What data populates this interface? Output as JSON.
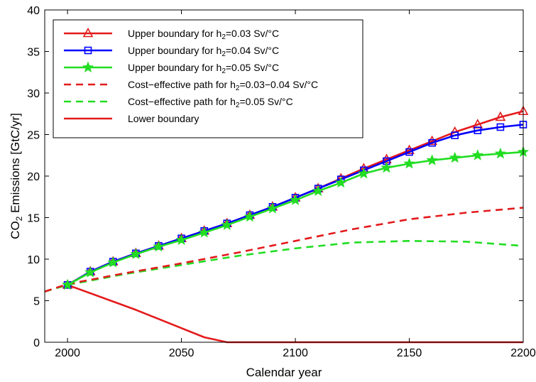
{
  "chart_data": {
    "type": "line",
    "xlabel": "Calendar year",
    "ylabel_main": "CO",
    "ylabel_sub": "2",
    "ylabel_rest": " Emissions [GtC/yr]",
    "xlim": [
      1990,
      2200
    ],
    "ylim": [
      0,
      40
    ],
    "xticks": [
      2000,
      2050,
      2100,
      2150,
      2200
    ],
    "yticks": [
      0,
      5,
      10,
      15,
      20,
      25,
      30,
      35,
      40
    ],
    "grid": false,
    "legend_position": "top-left",
    "series": [
      {
        "name_pre": "Upper boundary for h",
        "name_sub": "2",
        "name_post": "=0.03 Sv/°C",
        "color": "#e31a1c",
        "style": "solid",
        "marker": "triangle",
        "x": [
          2000,
          2010,
          2020,
          2030,
          2040,
          2050,
          2060,
          2070,
          2080,
          2090,
          2100,
          2110,
          2120,
          2130,
          2140,
          2150,
          2160,
          2170,
          2180,
          2190,
          2200
        ],
        "y": [
          6.9,
          8.5,
          9.7,
          10.7,
          11.6,
          12.5,
          13.4,
          14.3,
          15.3,
          16.3,
          17.4,
          18.5,
          19.7,
          20.9,
          22.0,
          23.1,
          24.2,
          25.3,
          26.2,
          27.1,
          27.8
        ]
      },
      {
        "name_pre": "Upper boundary for h",
        "name_sub": "2",
        "name_post": "=0.04 Sv/°C",
        "color": "#0000ff",
        "style": "solid",
        "marker": "square",
        "x": [
          2000,
          2010,
          2020,
          2030,
          2040,
          2050,
          2060,
          2070,
          2080,
          2090,
          2100,
          2110,
          2120,
          2130,
          2140,
          2150,
          2160,
          2170,
          2180,
          2190,
          2200
        ],
        "y": [
          6.9,
          8.5,
          9.7,
          10.7,
          11.6,
          12.5,
          13.4,
          14.3,
          15.3,
          16.3,
          17.4,
          18.5,
          19.6,
          20.7,
          21.8,
          22.9,
          24.0,
          24.9,
          25.5,
          25.9,
          26.2
        ]
      },
      {
        "name_pre": "Upper boundary for h",
        "name_sub": "2",
        "name_post": "=0.05 Sv/°C",
        "color": "#22dd22",
        "style": "solid",
        "marker": "star",
        "x": [
          2000,
          2010,
          2020,
          2030,
          2040,
          2050,
          2060,
          2070,
          2080,
          2090,
          2100,
          2110,
          2120,
          2130,
          2140,
          2150,
          2160,
          2170,
          2180,
          2190,
          2200
        ],
        "y": [
          6.9,
          8.4,
          9.6,
          10.6,
          11.5,
          12.3,
          13.2,
          14.1,
          15.1,
          16.1,
          17.1,
          18.2,
          19.2,
          20.3,
          21.0,
          21.5,
          21.9,
          22.2,
          22.5,
          22.7,
          22.9
        ]
      },
      {
        "name_pre": "Cost−effective path for h",
        "name_sub": "2",
        "name_post": "=0.03−0.04 Sv/°C",
        "color": "#e31a1c",
        "style": "dashed",
        "marker": "none",
        "x": [
          1990,
          2000,
          2025,
          2050,
          2075,
          2100,
          2125,
          2150,
          2175,
          2200
        ],
        "y": [
          6.1,
          7.0,
          8.3,
          9.5,
          10.8,
          12.2,
          13.6,
          14.8,
          15.6,
          16.2
        ]
      },
      {
        "name_pre": "Cost−effective path for h",
        "name_sub": "2",
        "name_post": "=0.05 Sv/°C",
        "color": "#22dd22",
        "style": "dashed",
        "marker": "none",
        "x": [
          1990,
          2000,
          2025,
          2050,
          2075,
          2100,
          2125,
          2150,
          2175,
          2200
        ],
        "y": [
          6.1,
          6.9,
          8.2,
          9.3,
          10.4,
          11.3,
          12.0,
          12.2,
          12.1,
          11.6
        ]
      },
      {
        "name_pre": "Lower boundary",
        "name_sub": "",
        "name_post": "",
        "color": "#e31a1c",
        "style": "solid",
        "marker": "none",
        "x": [
          2000,
          2030,
          2060,
          2070,
          2200
        ],
        "y": [
          6.9,
          3.9,
          0.6,
          0,
          0
        ]
      }
    ]
  }
}
